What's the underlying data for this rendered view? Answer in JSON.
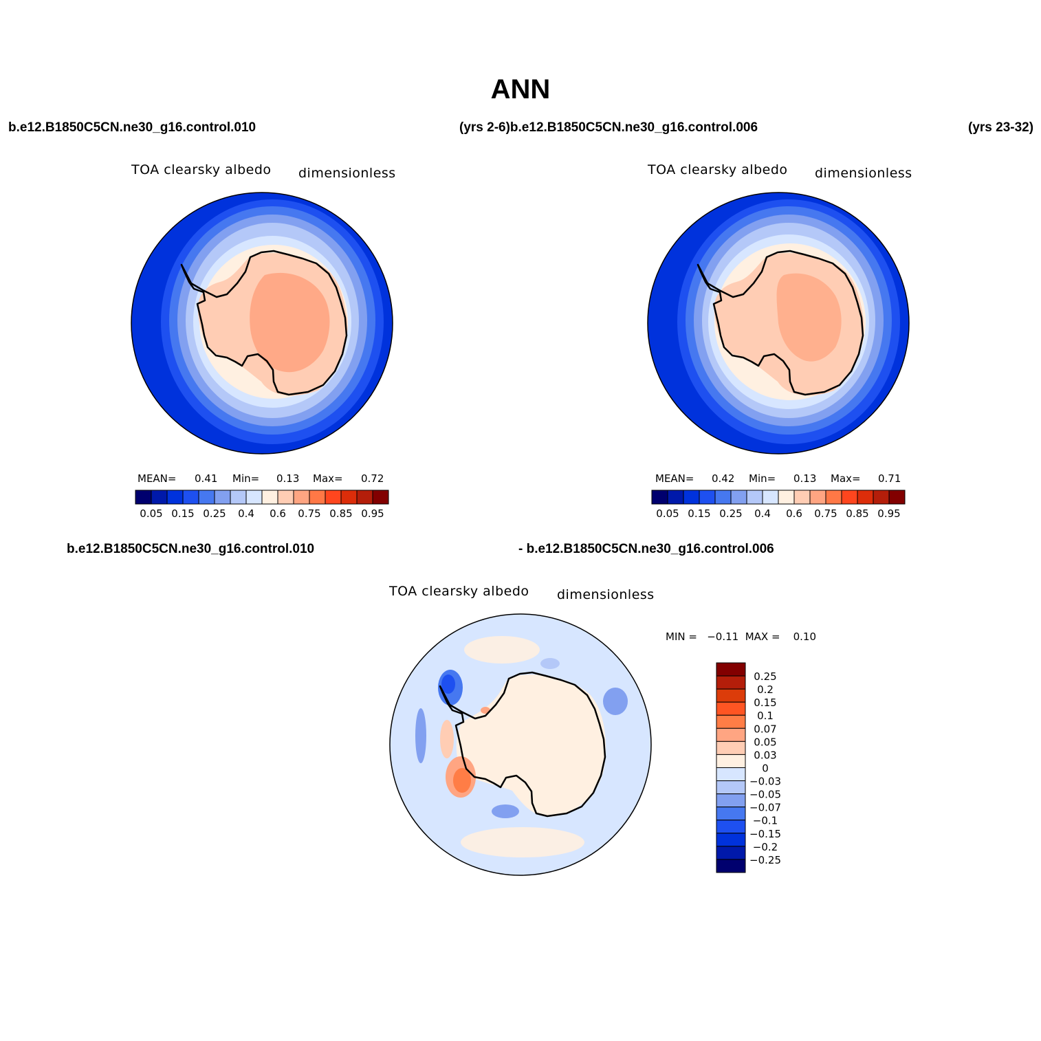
{
  "figure": {
    "title": "ANN",
    "top_left_case": "b.e12.B1850C5CN.ne30_g16.control.010",
    "top_mid_case": "(yrs 2-6)b.e12.B1850C5CN.ne30_g16.control.006",
    "top_right_case": "(yrs 23-32)",
    "diff_left": "b.e12.B1850C5CN.ne30_g16.control.010",
    "diff_right": "- b.e12.B1850C5CN.ne30_g16.control.006"
  },
  "panels": [
    {
      "variable": "TOA clearsky albedo",
      "units": "dimensionless",
      "mean_label": "MEAN=",
      "mean": "0.41",
      "min_label": "Min=",
      "min": "0.13",
      "max_label": "Max=",
      "max": "0.72"
    },
    {
      "variable": "TOA clearsky albedo",
      "units": "dimensionless",
      "mean_label": "MEAN=",
      "mean": "0.42",
      "min_label": "Min=",
      "min": "0.13",
      "max_label": "Max=",
      "max": "0.71"
    },
    {
      "variable": "TOA clearsky albedo",
      "units": "dimensionless",
      "minmax": "MIN =   −0.11  MAX =    0.10"
    }
  ],
  "colorbar_main": {
    "colors": [
      "#00006e",
      "#0019aa",
      "#0032dc",
      "#1e50f0",
      "#4678f0",
      "#82a0f0",
      "#b4c8f8",
      "#d7e6ff",
      "#fff0e1",
      "#ffcdb4",
      "#ffa582",
      "#ff7846",
      "#ff461e",
      "#dc2d0a",
      "#b41e0a",
      "#820000"
    ],
    "tick_labels": [
      "0.05",
      "0.15",
      "0.25",
      "0.4",
      "0.6",
      "0.75",
      "0.85",
      "0.95"
    ]
  },
  "colorbar_diff": {
    "colors": [
      "#820000",
      "#b41e0a",
      "#dc3c0a",
      "#ff5523",
      "#ff7d46",
      "#ffa582",
      "#ffcdb4",
      "#fff0e1",
      "#d7e6ff",
      "#b4c8f8",
      "#82a0f0",
      "#4678f0",
      "#1e50f0",
      "#0032dc",
      "#0019aa",
      "#00006e"
    ],
    "tick_labels": [
      "0.25",
      "0.2",
      "0.15",
      "0.1",
      "0.07",
      "0.05",
      "0.03",
      "0",
      "−0.03",
      "−0.05",
      "−0.07",
      "−0.1",
      "−0.15",
      "−0.2",
      "−0.25"
    ]
  }
}
